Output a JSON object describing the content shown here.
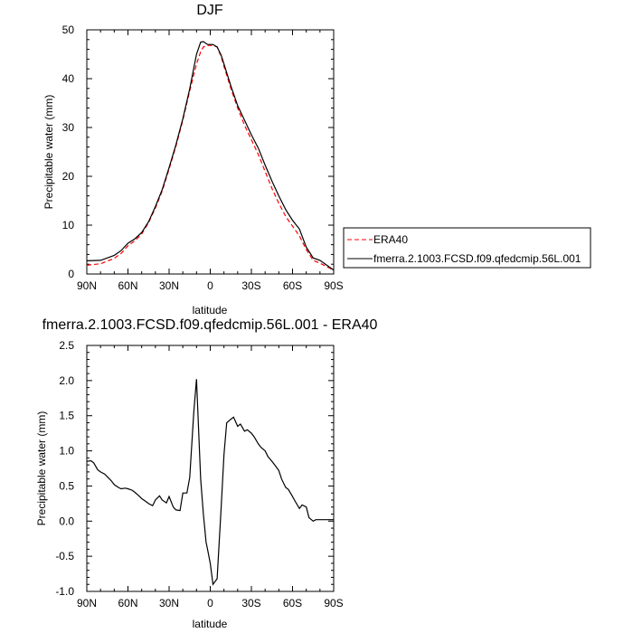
{
  "chart_data": [
    {
      "type": "line",
      "title": "DJF",
      "xlabel": "latitude",
      "ylabel": "Precipitable water (mm)",
      "xlim": [
        90,
        -90
      ],
      "ylim": [
        0,
        50
      ],
      "x_ticks": [
        "90N",
        "60N",
        "30N",
        "0",
        "30S",
        "60S",
        "90S"
      ],
      "x_tick_values": [
        90,
        60,
        30,
        0,
        -30,
        -60,
        -90
      ],
      "y_ticks": [
        "0",
        "10",
        "20",
        "30",
        "40",
        "50"
      ],
      "y_tick_values": [
        0,
        10,
        20,
        30,
        40,
        50
      ],
      "legend_position": "right",
      "series": [
        {
          "name": "ERA40",
          "color": "#ff0000",
          "dash": "dashed",
          "x": [
            90,
            80,
            70,
            65,
            60,
            55,
            50,
            45,
            40,
            35,
            30,
            25,
            20,
            15,
            10,
            7,
            5,
            2,
            0,
            -2,
            -5,
            -8,
            -10,
            -15,
            -20,
            -25,
            -30,
            -35,
            -40,
            -45,
            -50,
            -55,
            -60,
            -65,
            -70,
            -75,
            -80,
            -85,
            -90
          ],
          "y": [
            1.8,
            2.1,
            3.2,
            4.2,
            5.8,
            6.8,
            8.2,
            10.5,
            13.5,
            17.0,
            21.5,
            26.2,
            31.5,
            37.5,
            43.0,
            45.5,
            46.5,
            46.8,
            46.8,
            46.8,
            46.5,
            44.5,
            42.5,
            38.0,
            34.0,
            30.5,
            27.5,
            24.5,
            21.0,
            17.5,
            14.5,
            11.8,
            9.8,
            7.8,
            5.0,
            2.8,
            2.2,
            1.5,
            0.8
          ]
        },
        {
          "name": "fmerra.2.1003.FCSD.f09.qfedcmip.56L.001",
          "color": "#000000",
          "dash": "solid",
          "x": [
            90,
            80,
            70,
            65,
            60,
            55,
            50,
            45,
            40,
            35,
            30,
            25,
            20,
            15,
            10,
            7,
            5,
            2,
            0,
            -2,
            -5,
            -8,
            -10,
            -15,
            -20,
            -25,
            -30,
            -35,
            -40,
            -45,
            -50,
            -55,
            -60,
            -65,
            -70,
            -75,
            -80,
            -85,
            -90
          ],
          "y": [
            2.7,
            2.8,
            3.8,
            4.8,
            6.3,
            7.2,
            8.5,
            10.7,
            13.8,
            17.3,
            21.8,
            26.5,
            31.8,
            37.9,
            45.0,
            47.5,
            47.6,
            47.0,
            47.0,
            47.0,
            46.5,
            44.8,
            43.0,
            38.5,
            34.5,
            31.5,
            28.5,
            25.8,
            22.3,
            19.0,
            16.0,
            13.2,
            11.0,
            9.2,
            5.5,
            3.3,
            2.8,
            1.8,
            0.8
          ]
        }
      ]
    },
    {
      "type": "line",
      "title": "fmerra.2.1003.FCSD.f09.qfedcmip.56L.001 - ERA40",
      "xlabel": "latitude",
      "ylabel": "Precipitable water (mm)",
      "xlim": [
        90,
        -90
      ],
      "ylim": [
        -1.0,
        2.5
      ],
      "x_ticks": [
        "90N",
        "60N",
        "30N",
        "0",
        "30S",
        "60S",
        "90S"
      ],
      "x_tick_values": [
        90,
        60,
        30,
        0,
        -30,
        -60,
        -90
      ],
      "y_ticks": [
        "-1.0",
        "-0.5",
        "0.0",
        "0.5",
        "1.0",
        "1.5",
        "2.0",
        "2.5"
      ],
      "y_tick_values": [
        -1.0,
        -0.5,
        0.0,
        0.5,
        1.0,
        1.5,
        2.0,
        2.5
      ],
      "series": [
        {
          "name": "",
          "color": "#000000",
          "dash": "solid",
          "x": [
            90,
            87,
            85,
            82,
            80,
            77,
            75,
            72,
            70,
            67,
            65,
            62,
            60,
            57,
            55,
            52,
            50,
            47,
            45,
            42,
            40,
            37,
            35,
            32,
            30,
            27,
            25,
            22,
            20,
            17,
            15,
            12,
            10,
            7,
            5,
            3,
            2,
            0,
            -2,
            -5,
            -8,
            -10,
            -12,
            -15,
            -17,
            -20,
            -22,
            -25,
            -27,
            -30,
            -32,
            -35,
            -37,
            -40,
            -42,
            -45,
            -47,
            -50,
            -52,
            -55,
            -57,
            -60,
            -62,
            -65,
            -67,
            -70,
            -72,
            -75,
            -77,
            -80,
            -82,
            -85,
            -87,
            -90
          ],
          "y": [
            0.85,
            0.86,
            0.83,
            0.73,
            0.7,
            0.67,
            0.63,
            0.57,
            0.52,
            0.48,
            0.46,
            0.47,
            0.46,
            0.44,
            0.41,
            0.36,
            0.32,
            0.28,
            0.25,
            0.22,
            0.3,
            0.36,
            0.3,
            0.26,
            0.35,
            0.2,
            0.16,
            0.15,
            0.4,
            0.4,
            0.62,
            1.55,
            2.02,
            0.6,
            0.1,
            -0.3,
            -0.4,
            -0.6,
            -0.9,
            -0.82,
            0.2,
            0.95,
            1.4,
            1.45,
            1.48,
            1.35,
            1.38,
            1.28,
            1.3,
            1.25,
            1.2,
            1.1,
            1.05,
            1.0,
            0.92,
            0.85,
            0.8,
            0.72,
            0.6,
            0.48,
            0.45,
            0.35,
            0.28,
            0.18,
            0.23,
            0.2,
            0.05,
            0.0,
            0.02,
            0.02,
            0.02,
            0.02,
            0.02,
            0.02
          ]
        }
      ]
    }
  ]
}
